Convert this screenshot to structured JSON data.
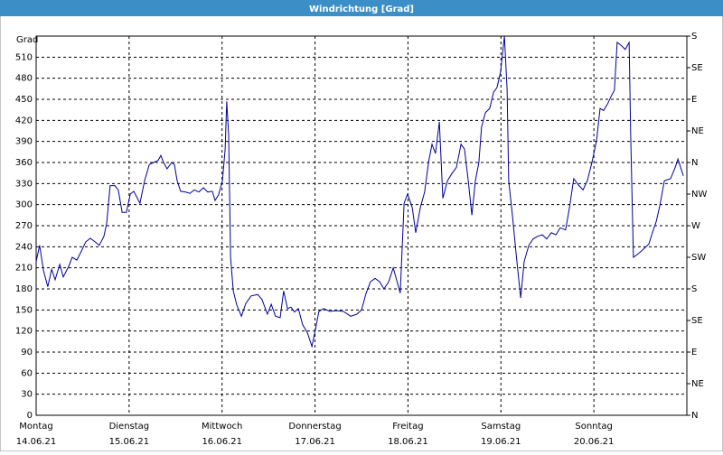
{
  "chart_data": {
    "type": "line",
    "title": "Windrichtung [Grad]",
    "ylabel": "Grad",
    "xlim": [
      0,
      168
    ],
    "xticks": [
      {
        "value": 0,
        "label": "Montag",
        "date": "14.06.21"
      },
      {
        "value": 24,
        "label": "Dienstag",
        "date": "15.06.21"
      },
      {
        "value": 48,
        "label": "Mittwoch",
        "date": "16.06.21"
      },
      {
        "value": 72,
        "label": "Donnerstag",
        "date": "17.06.21"
      },
      {
        "value": 96,
        "label": "Freitag",
        "date": "18.06.21"
      },
      {
        "value": 120,
        "label": "Samstag",
        "date": "19.06.21"
      },
      {
        "value": 144,
        "label": "Sonntag",
        "date": "20.06.21"
      }
    ],
    "ylim": [
      0,
      540
    ],
    "yticks": [
      0,
      30,
      60,
      90,
      120,
      150,
      180,
      210,
      240,
      270,
      300,
      330,
      360,
      390,
      420,
      450,
      480,
      510
    ],
    "y2lim": [
      0,
      540
    ],
    "y2ticks": [
      {
        "value": 0,
        "label": "N"
      },
      {
        "value": 45,
        "label": "NE"
      },
      {
        "value": 90,
        "label": "E"
      },
      {
        "value": 135,
        "label": "SE"
      },
      {
        "value": 180,
        "label": "S"
      },
      {
        "value": 225,
        "label": "SW"
      },
      {
        "value": 270,
        "label": "W"
      },
      {
        "value": 315,
        "label": "NW"
      },
      {
        "value": 360,
        "label": "N"
      },
      {
        "value": 405,
        "label": "NE"
      },
      {
        "value": 450,
        "label": "E"
      },
      {
        "value": 495,
        "label": "SE"
      },
      {
        "value": 540,
        "label": "S"
      }
    ],
    "grid": true,
    "series": [
      {
        "color": "#00009c",
        "x": [
          0,
          0.9,
          1.9,
          3,
          4,
          4.9,
          6.1,
          7,
          8.4,
          9.3,
          10.5,
          11.7,
          12.8,
          14,
          15.2,
          16.3,
          17.5,
          18.2,
          19.1,
          20.3,
          21.2,
          22.2,
          23.3,
          24.3,
          25.2,
          26.8,
          28,
          29.2,
          30.3,
          31.5,
          32.2,
          32.9,
          33.8,
          35,
          35.7,
          36.4,
          37.3,
          38.5,
          39.7,
          40.8,
          42,
          43.2,
          44.3,
          45.5,
          46.2,
          47.1,
          48.1,
          48.8,
          49.2,
          49.7,
          50.2,
          50.9,
          51.8,
          53,
          54.1,
          55.5,
          57.2,
          58.3,
          59.7,
          60.7,
          61.8,
          63,
          63.9,
          64.9,
          65.8,
          66.7,
          67.7,
          68.8,
          70,
          71.2,
          72.1,
          73,
          74.2,
          75.8,
          77.5,
          79.3,
          81.2,
          82.8,
          84,
          85.2,
          86.3,
          87.5,
          88.7,
          89.8,
          91,
          92.2,
          93.3,
          94,
          95,
          95.9,
          97.1,
          98,
          99.2,
          100.3,
          101.3,
          102.2,
          103.1,
          104.1,
          105,
          106.2,
          107.3,
          108.5,
          109.7,
          110.6,
          111.5,
          112.5,
          113.4,
          114.3,
          115,
          116,
          117.1,
          118.1,
          119,
          119.9,
          120.9,
          121.6,
          122,
          123,
          123.9,
          125.1,
          126,
          127.2,
          128.3,
          129.5,
          130.7,
          131.8,
          133,
          134.2,
          135.3,
          136.7,
          137.7,
          138.8,
          140,
          141.2,
          142.3,
          143.5,
          144.7,
          145.6,
          146.5,
          147.5,
          148.6,
          149.3,
          150,
          151,
          152.1,
          153.1,
          153.5,
          154.2,
          155.2,
          156.3,
          158.2,
          159.1,
          160.1,
          161,
          162.2,
          163.8,
          165,
          165.7,
          166.4,
          167.1
        ],
        "values": [
          219,
          242,
          206,
          183,
          208,
          193,
          215,
          197,
          212,
          225,
          221,
          234,
          247,
          252,
          247,
          242,
          255,
          273,
          327,
          327,
          321,
          289,
          289,
          315,
          319,
          302,
          334,
          357,
          360,
          363,
          370,
          360,
          351,
          360,
          357,
          334,
          319,
          318,
          316,
          321,
          318,
          324,
          318,
          319,
          306,
          314,
          334,
          379,
          447,
          399,
          225,
          177,
          157,
          141,
          159,
          170,
          172,
          165,
          144,
          158,
          141,
          139,
          177,
          152,
          154,
          147,
          152,
          129,
          118,
          98,
          122,
          148,
          152,
          148,
          149,
          148,
          141,
          144,
          150,
          174,
          190,
          195,
          190,
          180,
          190,
          210,
          188,
          174,
          302,
          315,
          296,
          260,
          296,
          318,
          360,
          386,
          373,
          418,
          309,
          334,
          344,
          353,
          386,
          379,
          337,
          285,
          334,
          360,
          411,
          431,
          437,
          460,
          467,
          489,
          540,
          463,
          334,
          283,
          231,
          167,
          219,
          242,
          251,
          255,
          257,
          251,
          260,
          257,
          267,
          264,
          296,
          337,
          328,
          321,
          334,
          360,
          392,
          437,
          434,
          443,
          456,
          463,
          531,
          527,
          521,
          531,
          399,
          225,
          229,
          234,
          244,
          260,
          276,
          298,
          334,
          337,
          353,
          365,
          353,
          341
        ]
      }
    ]
  }
}
